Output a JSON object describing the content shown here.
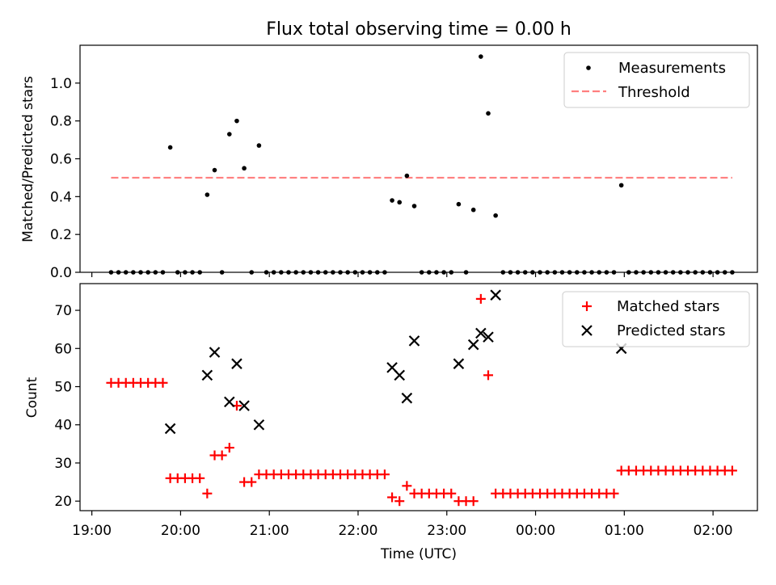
{
  "chart_data": {
    "type": "scatter",
    "title": "Flux total observing time = 0.00 h",
    "xlabel": "Time (UTC)",
    "x_axis": {
      "start": "2023-01-01T19:00",
      "ticks": [
        "19:00",
        "20:00",
        "21:00",
        "22:00",
        "23:00",
        "00:00",
        "01:00",
        "02:00"
      ],
      "range": [
        "18:52",
        "02:30"
      ]
    },
    "top": {
      "ylabel": "Matched/Predicted stars",
      "ylim": [
        0,
        1.2
      ],
      "yticks": [
        "0.0",
        "0.2",
        "0.4",
        "0.6",
        "0.8",
        "1.0"
      ],
      "legend_position": "top-right",
      "series": [
        {
          "name": "Measurements",
          "color": "#000000",
          "marker": "dot",
          "points": [
            [
              "19:13",
              0
            ],
            [
              "19:18",
              0
            ],
            [
              "19:23",
              0
            ],
            [
              "19:28",
              0
            ],
            [
              "19:33",
              0
            ],
            [
              "19:38",
              0
            ],
            [
              "19:43",
              0
            ],
            [
              "19:48",
              0
            ],
            [
              "19:53",
              0.66
            ],
            [
              "19:58",
              0
            ],
            [
              "20:03",
              0
            ],
            [
              "20:08",
              0
            ],
            [
              "20:13",
              0
            ],
            [
              "20:18",
              0.41
            ],
            [
              "20:23",
              0.54
            ],
            [
              "20:28",
              0
            ],
            [
              "20:33",
              0.73
            ],
            [
              "20:38",
              0.8
            ],
            [
              "20:43",
              0.55
            ],
            [
              "20:48",
              0
            ],
            [
              "20:53",
              0.67
            ],
            [
              "20:58",
              0
            ],
            [
              "21:03",
              0
            ],
            [
              "21:08",
              0
            ],
            [
              "21:13",
              0
            ],
            [
              "21:18",
              0
            ],
            [
              "21:23",
              0
            ],
            [
              "21:28",
              0
            ],
            [
              "21:33",
              0
            ],
            [
              "21:38",
              0
            ],
            [
              "21:43",
              0
            ],
            [
              "21:48",
              0
            ],
            [
              "21:53",
              0
            ],
            [
              "21:58",
              0
            ],
            [
              "22:03",
              0
            ],
            [
              "22:08",
              0
            ],
            [
              "22:13",
              0
            ],
            [
              "22:18",
              0
            ],
            [
              "22:23",
              0.38
            ],
            [
              "22:28",
              0.37
            ],
            [
              "22:33",
              0.51
            ],
            [
              "22:38",
              0.35
            ],
            [
              "22:43",
              0
            ],
            [
              "22:48",
              0
            ],
            [
              "22:53",
              0
            ],
            [
              "22:58",
              0
            ],
            [
              "23:03",
              0
            ],
            [
              "23:08",
              0.36
            ],
            [
              "23:13",
              0
            ],
            [
              "23:18",
              0.33
            ],
            [
              "23:23",
              1.14
            ],
            [
              "23:28",
              0.84
            ],
            [
              "23:33",
              0.3
            ],
            [
              "23:38",
              0
            ],
            [
              "23:43",
              0
            ],
            [
              "23:48",
              0
            ],
            [
              "23:53",
              0
            ],
            [
              "23:58",
              0
            ],
            [
              "00:03",
              0
            ],
            [
              "00:08",
              0
            ],
            [
              "00:13",
              0
            ],
            [
              "00:18",
              0
            ],
            [
              "00:23",
              0
            ],
            [
              "00:28",
              0
            ],
            [
              "00:33",
              0
            ],
            [
              "00:38",
              0
            ],
            [
              "00:43",
              0
            ],
            [
              "00:48",
              0
            ],
            [
              "00:53",
              0
            ],
            [
              "00:58",
              0.46
            ],
            [
              "01:03",
              0
            ],
            [
              "01:08",
              0
            ],
            [
              "01:13",
              0
            ],
            [
              "01:18",
              0
            ],
            [
              "01:23",
              0
            ],
            [
              "01:28",
              0
            ],
            [
              "01:33",
              0
            ],
            [
              "01:38",
              0
            ],
            [
              "01:43",
              0
            ],
            [
              "01:48",
              0
            ],
            [
              "01:53",
              0
            ],
            [
              "01:58",
              0
            ],
            [
              "02:03",
              0
            ],
            [
              "02:08",
              0
            ],
            [
              "02:13",
              0
            ]
          ]
        },
        {
          "name": "Threshold",
          "color": "#ff7f7f",
          "style": "dashed",
          "points": [
            [
              "19:13",
              0.5
            ],
            [
              "02:13",
              0.5
            ]
          ]
        }
      ]
    },
    "bottom": {
      "ylabel": "Count",
      "ylim": [
        17.5,
        77
      ],
      "yticks": [
        "20",
        "30",
        "40",
        "50",
        "60",
        "70"
      ],
      "legend_position": "top-right",
      "series": [
        {
          "name": "Matched stars",
          "color": "#ff0000",
          "marker": "plus",
          "points": [
            [
              "19:13",
              51
            ],
            [
              "19:18",
              51
            ],
            [
              "19:23",
              51
            ],
            [
              "19:28",
              51
            ],
            [
              "19:33",
              51
            ],
            [
              "19:38",
              51
            ],
            [
              "19:43",
              51
            ],
            [
              "19:48",
              51
            ],
            [
              "19:53",
              26
            ],
            [
              "19:58",
              26
            ],
            [
              "20:03",
              26
            ],
            [
              "20:08",
              26
            ],
            [
              "20:13",
              26
            ],
            [
              "20:18",
              22
            ],
            [
              "20:23",
              32
            ],
            [
              "20:28",
              32
            ],
            [
              "20:33",
              34
            ],
            [
              "20:38",
              45
            ],
            [
              "20:43",
              25
            ],
            [
              "20:48",
              25
            ],
            [
              "20:53",
              27
            ],
            [
              "20:58",
              27
            ],
            [
              "21:03",
              27
            ],
            [
              "21:08",
              27
            ],
            [
              "21:13",
              27
            ],
            [
              "21:18",
              27
            ],
            [
              "21:23",
              27
            ],
            [
              "21:28",
              27
            ],
            [
              "21:33",
              27
            ],
            [
              "21:38",
              27
            ],
            [
              "21:43",
              27
            ],
            [
              "21:48",
              27
            ],
            [
              "21:53",
              27
            ],
            [
              "21:58",
              27
            ],
            [
              "22:03",
              27
            ],
            [
              "22:08",
              27
            ],
            [
              "22:13",
              27
            ],
            [
              "22:18",
              27
            ],
            [
              "22:23",
              21
            ],
            [
              "22:28",
              20
            ],
            [
              "22:33",
              24
            ],
            [
              "22:38",
              22
            ],
            [
              "22:43",
              22
            ],
            [
              "22:48",
              22
            ],
            [
              "22:53",
              22
            ],
            [
              "22:58",
              22
            ],
            [
              "23:03",
              22
            ],
            [
              "23:08",
              20
            ],
            [
              "23:13",
              20
            ],
            [
              "23:18",
              20
            ],
            [
              "23:23",
              73
            ],
            [
              "23:28",
              53
            ],
            [
              "23:33",
              22
            ],
            [
              "23:38",
              22
            ],
            [
              "23:43",
              22
            ],
            [
              "23:48",
              22
            ],
            [
              "23:53",
              22
            ],
            [
              "23:58",
              22
            ],
            [
              "00:03",
              22
            ],
            [
              "00:08",
              22
            ],
            [
              "00:13",
              22
            ],
            [
              "00:18",
              22
            ],
            [
              "00:23",
              22
            ],
            [
              "00:28",
              22
            ],
            [
              "00:33",
              22
            ],
            [
              "00:38",
              22
            ],
            [
              "00:43",
              22
            ],
            [
              "00:48",
              22
            ],
            [
              "00:53",
              22
            ],
            [
              "00:58",
              28
            ],
            [
              "01:03",
              28
            ],
            [
              "01:08",
              28
            ],
            [
              "01:13",
              28
            ],
            [
              "01:18",
              28
            ],
            [
              "01:23",
              28
            ],
            [
              "01:28",
              28
            ],
            [
              "01:33",
              28
            ],
            [
              "01:38",
              28
            ],
            [
              "01:43",
              28
            ],
            [
              "01:48",
              28
            ],
            [
              "01:53",
              28
            ],
            [
              "01:58",
              28
            ],
            [
              "02:03",
              28
            ],
            [
              "02:08",
              28
            ],
            [
              "02:13",
              28
            ]
          ]
        },
        {
          "name": "Predicted stars",
          "color": "#000000",
          "marker": "x",
          "points": [
            [
              "19:53",
              39
            ],
            [
              "20:18",
              53
            ],
            [
              "20:23",
              59
            ],
            [
              "20:33",
              46
            ],
            [
              "20:38",
              56
            ],
            [
              "20:43",
              45
            ],
            [
              "20:53",
              40
            ],
            [
              "22:23",
              55
            ],
            [
              "22:28",
              53
            ],
            [
              "22:33",
              47
            ],
            [
              "22:38",
              62
            ],
            [
              "23:08",
              56
            ],
            [
              "23:18",
              61
            ],
            [
              "23:23",
              64
            ],
            [
              "23:28",
              63
            ],
            [
              "23:33",
              74
            ],
            [
              "00:58",
              60
            ]
          ]
        }
      ]
    }
  }
}
